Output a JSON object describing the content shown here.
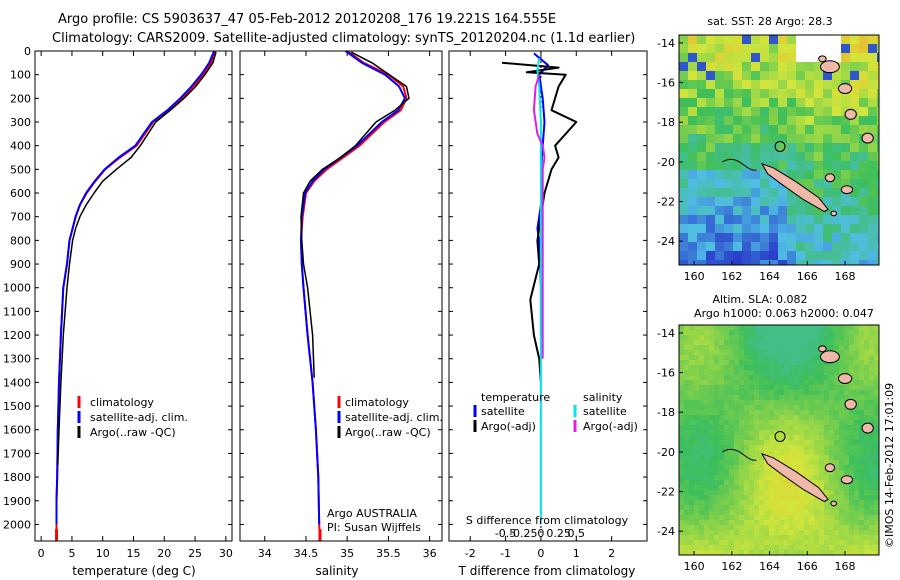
{
  "header": {
    "line1": "Argo profile: CS 5903637_47 05-Feb-2012 20120208_176 19.221S 164.555E",
    "line2": "Climatology: CARS2009. Satellite-adjusted climatology: synTS_20120204.nc (1.1d earlier)"
  },
  "colors": {
    "climatology": "#ff0000",
    "satellite": "#0000ff",
    "argo": "#000000",
    "sat_diff": "#00e5ee",
    "argo_s_diff": "#e020e0",
    "land": "#f0b8a8"
  },
  "chart_data": [
    {
      "id": "temperature-panel",
      "type": "line",
      "xlabel": "temperature (deg C)",
      "ylabel": "",
      "xlim": [
        -1,
        31
      ],
      "ylim": [
        2070,
        0
      ],
      "xticks": [
        "0",
        "5",
        "10",
        "15",
        "20",
        "25",
        "30"
      ],
      "yticks": [
        "0",
        "100",
        "200",
        "300",
        "400",
        "500",
        "600",
        "700",
        "800",
        "900",
        "1000",
        "1100",
        "1200",
        "1300",
        "1400",
        "1500",
        "1600",
        "1700",
        "1800",
        "1900",
        "2000"
      ],
      "series": [
        {
          "name": "climatology",
          "color": "#ff0000",
          "x": [
            28.3,
            27.6,
            26.3,
            24.7,
            22.9,
            20.7,
            18.2,
            15.5,
            12.8,
            10.4,
            8.8,
            7.4,
            6.3,
            5.6,
            5.1,
            4.6,
            4.2,
            3.6,
            3.2,
            2.9,
            2.7,
            2.6,
            2.5,
            2.5,
            2.5
          ],
          "y": [
            0,
            50,
            100,
            150,
            200,
            250,
            300,
            400,
            450,
            500,
            550,
            600,
            650,
            700,
            750,
            800,
            900,
            1000,
            1200,
            1400,
            1600,
            1800,
            1900,
            2000,
            2070
          ]
        },
        {
          "name": "satellite-adj. clim.",
          "color": "#0000ff",
          "x": [
            28.1,
            27.3,
            26.0,
            24.4,
            22.6,
            20.5,
            18.0,
            15.3,
            12.6,
            10.3,
            8.7,
            7.3,
            6.3,
            5.6,
            5.1,
            4.6,
            4.2,
            3.6,
            3.2,
            2.9,
            2.7,
            2.6,
            2.5,
            2.5
          ],
          "y": [
            0,
            50,
            100,
            150,
            200,
            250,
            300,
            400,
            450,
            500,
            550,
            600,
            650,
            700,
            750,
            800,
            900,
            1000,
            1200,
            1400,
            1600,
            1800,
            1900,
            2000
          ]
        },
        {
          "name": "Argo(..raw -QC)",
          "color": "#000000",
          "x": [
            28.4,
            27.9,
            26.6,
            25.1,
            23.2,
            21.0,
            18.6,
            16.1,
            14.6,
            12.2,
            10.0,
            8.6,
            7.3,
            6.3,
            5.6,
            5.1,
            4.6,
            4.2,
            3.6,
            3.2,
            2.9,
            2.7
          ],
          "y": [
            5,
            50,
            100,
            150,
            200,
            250,
            300,
            400,
            450,
            500,
            550,
            600,
            650,
            700,
            750,
            800,
            900,
            1000,
            1200,
            1400,
            1600,
            1750
          ]
        }
      ],
      "legend": [
        "climatology",
        "satellite-adj. clim.",
        "Argo(..raw -QC)"
      ]
    },
    {
      "id": "salinity-panel",
      "type": "line",
      "xlabel": "salinity",
      "xlim": [
        33.7,
        36.15
      ],
      "ylim": [
        2070,
        0
      ],
      "xticks": [
        "34",
        "34.5",
        "35",
        "35.5",
        "36"
      ],
      "series": [
        {
          "name": "climatology",
          "color": "#ff0000",
          "x": [
            35.0,
            35.2,
            35.5,
            35.68,
            35.72,
            35.65,
            35.45,
            35.15,
            34.95,
            34.75,
            34.6,
            34.5,
            34.46,
            34.44,
            34.45,
            34.47,
            34.52,
            34.58,
            34.62,
            34.65,
            34.66,
            34.67
          ],
          "y": [
            0,
            50,
            100,
            150,
            200,
            250,
            300,
            400,
            450,
            500,
            550,
            600,
            700,
            800,
            900,
            1000,
            1200,
            1400,
            1600,
            1800,
            2000,
            2070
          ]
        },
        {
          "name": "satellite-adj. clim.",
          "color": "#0000ff",
          "x": [
            34.98,
            35.18,
            35.46,
            35.63,
            35.7,
            35.62,
            35.42,
            35.12,
            34.92,
            34.72,
            34.58,
            34.49,
            34.45,
            34.44,
            34.45,
            34.47,
            34.52,
            34.58,
            34.62,
            34.65,
            34.66
          ],
          "y": [
            0,
            50,
            100,
            150,
            200,
            250,
            300,
            400,
            450,
            500,
            550,
            600,
            700,
            800,
            900,
            1000,
            1200,
            1400,
            1600,
            1800,
            2000
          ]
        },
        {
          "name": "Argo(..raw -QC)",
          "color": "#000000",
          "x": [
            35.05,
            35.3,
            35.72,
            35.75,
            35.58,
            35.35,
            35.1,
            34.92,
            34.7,
            34.55,
            34.47,
            34.44,
            34.45,
            34.47,
            34.52,
            34.58,
            34.6
          ],
          "y": [
            5,
            50,
            150,
            200,
            250,
            300,
            400,
            450,
            500,
            550,
            600,
            700,
            800,
            900,
            1000,
            1200,
            1380
          ]
        }
      ],
      "legend": [
        "climatology",
        "satellite-adj. clim.",
        "Argo(..raw -QC)"
      ],
      "annotation": {
        "line1": "Argo AUSTRALIA",
        "line2": "PI: Susan Wijffels"
      }
    },
    {
      "id": "difference-panel",
      "type": "line",
      "xlabel": "T difference from climatology",
      "top_label": "S difference from climatology",
      "xlim": [
        -2.6,
        3.0
      ],
      "ylim": [
        2070,
        0
      ],
      "xticks": [
        "-2",
        "-1",
        "0",
        "1",
        "2"
      ],
      "s_ticks": [
        "-0.5",
        "-0.25",
        "0",
        "0.25",
        "0.5"
      ],
      "series": [
        {
          "name": "temperature satellite",
          "color": "#0000ff",
          "x": [
            -0.2,
            0.2,
            -0.05,
            0.05,
            0.1,
            0.05,
            0.0,
            0.02,
            0.03,
            0.0,
            -0.05,
            -0.1,
            -0.05,
            -0.02,
            0.0,
            0.0
          ],
          "y": [
            10,
            60,
            100,
            200,
            300,
            400,
            500,
            550,
            600,
            650,
            700,
            750,
            800,
            900,
            1000,
            1200
          ]
        },
        {
          "name": "temperature Argo(-adj)",
          "color": "#000000",
          "x": [
            -1.1,
            0.5,
            -0.4,
            0.7,
            0.5,
            0.3,
            1.0,
            0.4,
            0.5,
            0.3,
            0.1,
            0.0,
            -0.1,
            -0.05,
            -0.3,
            -0.2,
            -0.05,
            0.0
          ],
          "y": [
            50,
            70,
            90,
            100,
            150,
            250,
            300,
            400,
            450,
            500,
            600,
            700,
            800,
            900,
            1050,
            1200,
            1300,
            1400
          ]
        },
        {
          "name": "salinity satellite",
          "color": "#00e5ee",
          "x": [
            -0.05,
            -0.1,
            -0.05,
            0.0,
            0.0,
            0.0,
            0.0,
            0.0,
            0.0,
            0.0,
            0.0,
            0.0,
            0.0
          ],
          "y": [
            30,
            80,
            150,
            300,
            400,
            500,
            600,
            800,
            1000,
            1200,
            1500,
            1800,
            2000
          ]
        },
        {
          "name": "salinity Argo(-adj)",
          "color": "#e020e0",
          "x": [
            -0.05,
            -0.15,
            -0.2,
            -0.1,
            0.05,
            0.1,
            0.05,
            0.05,
            0.05,
            0.05
          ],
          "y": [
            100,
            150,
            250,
            350,
            400,
            450,
            500,
            650,
            1200,
            1300
          ]
        }
      ],
      "legend_headers": [
        "temperature",
        "salinity"
      ],
      "legend": [
        "satellite",
        "Argo(-adj)",
        "satellite",
        "Argo(-adj)"
      ]
    },
    {
      "id": "sst-map",
      "type": "heatmap",
      "title": "sat. SST: 28 Argo: 28.3",
      "xlim": [
        159.2,
        169.8
      ],
      "ylim": [
        -25.2,
        -13.6
      ],
      "xticks": [
        "160",
        "162",
        "164",
        "166",
        "168"
      ],
      "yticks": [
        "-14",
        "-16",
        "-18",
        "-20",
        "-22",
        "-24"
      ],
      "marker": {
        "lon": 164.555,
        "lat": -19.221
      }
    },
    {
      "id": "sla-map",
      "type": "heatmap",
      "title_line1": "Altim. SLA: 0.082",
      "title_line2": "Argo h1000: 0.063 h2000: 0.047",
      "xlim": [
        159.2,
        169.8
      ],
      "ylim": [
        -25.2,
        -13.6
      ],
      "xticks": [
        "160",
        "162",
        "164",
        "166",
        "168"
      ],
      "yticks": [
        "-14",
        "-16",
        "-18",
        "-20",
        "-22",
        "-24"
      ],
      "marker": {
        "lon": 164.555,
        "lat": -19.221
      }
    }
  ],
  "footer": {
    "stamp": "©IMOS 14-Feb-2012 17:01:09"
  }
}
